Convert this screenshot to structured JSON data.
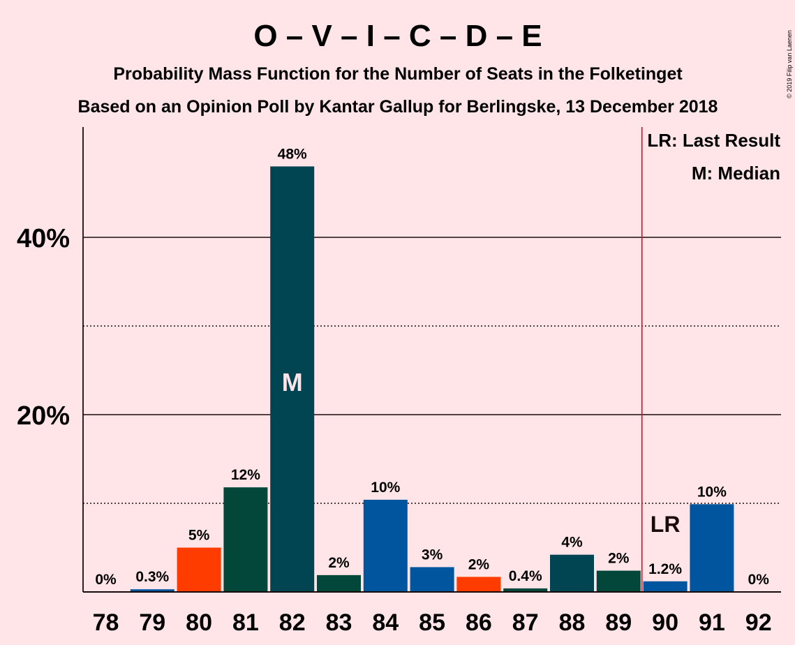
{
  "chart_data": {
    "type": "bar",
    "title": "O – V – I – C – D – E",
    "subtitle": "Probability Mass Function for the Number of Seats in the Folketinget",
    "subtitle2": "Based on an Opinion Poll by Kantar Gallup for Berlingske, 13 December 2018",
    "copyright": "© 2019 Filip van Laenen",
    "categories": [
      "78",
      "79",
      "80",
      "81",
      "82",
      "83",
      "84",
      "85",
      "86",
      "87",
      "88",
      "89",
      "90",
      "91",
      "92"
    ],
    "values": [
      0,
      0.3,
      5,
      11.8,
      48,
      1.9,
      10.4,
      2.8,
      1.7,
      0.4,
      4.2,
      2.4,
      1.2,
      9.9,
      0
    ],
    "labels": [
      "0%",
      "0.3%",
      "5%",
      "12%",
      "48%",
      "2%",
      "10%",
      "3%",
      "2%",
      "0.4%",
      "4%",
      "2%",
      "1.2%",
      "10%",
      "0%"
    ],
    "colors": [
      "#00456B",
      "#00569E",
      "#FF3C00",
      "#03473A",
      "#024552",
      "#03473A",
      "#00569E",
      "#00569E",
      "#FF3C00",
      "#03473A",
      "#024552",
      "#03473A",
      "#00569E",
      "#00569E",
      "#00569E"
    ],
    "ylim": [
      0,
      52
    ],
    "yticks": [
      {
        "value": 20,
        "label": "20%"
      },
      {
        "value": 40,
        "label": "40%"
      }
    ],
    "dotted_lines": [
      10,
      30
    ],
    "median_seat": "82",
    "median_marker": "M",
    "last_result_seat": "90",
    "last_result_marker": "LR",
    "last_result_line_color": "#C8102E",
    "legend": [
      "LR: Last Result",
      "M: Median"
    ],
    "legend_position": "top-right"
  }
}
